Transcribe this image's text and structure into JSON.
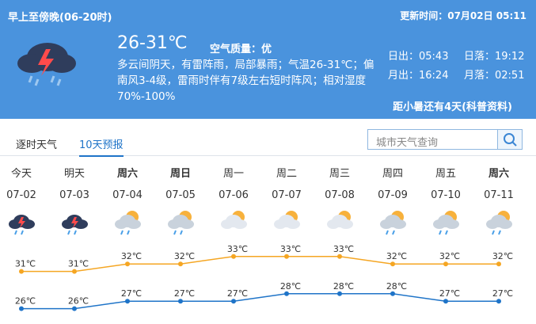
{
  "header": {
    "title": "早上至傍晚(06-20时)",
    "update": "更新时间：07月02日 05:11",
    "temperature": "26-31℃",
    "air_quality": "空气质量：优",
    "description": "多云间阴天，有雷阵雨，局部暴雨；气温26-31℃；偏南风3-4级，雷雨时伴有7级左右短时阵风；相对湿度70%-100%",
    "sunrise": "日出：05:43",
    "sunset": "日落：19:12",
    "moonrise": "月出：16:24",
    "moonset": "月落：02:51",
    "solar_term": "距小暑还有4天(科普资料)"
  },
  "tabs": [
    "逐时天气",
    "10天预报"
  ],
  "active_tab": 1,
  "search_placeholder": "城市天气查询",
  "forecast": {
    "days": [
      {
        "name": "今天",
        "date": "07-02",
        "bold": false,
        "icon": "thunderstorm"
      },
      {
        "name": "明天",
        "date": "07-03",
        "bold": false,
        "icon": "thunderstorm"
      },
      {
        "name": "周六",
        "date": "07-04",
        "bold": true,
        "icon": "cloudy-rain"
      },
      {
        "name": "周日",
        "date": "07-05",
        "bold": true,
        "icon": "cloudy-rain"
      },
      {
        "name": "周一",
        "date": "07-06",
        "bold": false,
        "icon": "partly-cloudy"
      },
      {
        "name": "周二",
        "date": "07-07",
        "bold": false,
        "icon": "partly-cloudy"
      },
      {
        "name": "周三",
        "date": "07-08",
        "bold": false,
        "icon": "partly-cloudy"
      },
      {
        "name": "周四",
        "date": "07-09",
        "bold": false,
        "icon": "cloudy-rain"
      },
      {
        "name": "周五",
        "date": "07-10",
        "bold": false,
        "icon": "cloudy-rain"
      },
      {
        "name": "周六",
        "date": "07-11",
        "bold": true,
        "icon": "cloudy-rain"
      }
    ],
    "highs": {
      "color": "#f5a623",
      "values": [
        31,
        31,
        32,
        32,
        33,
        33,
        33,
        32,
        32,
        32
      ],
      "value_labels": [
        "31℃",
        "31℃",
        "32℃",
        "32℃",
        "33℃",
        "33℃",
        "33℃",
        "32℃",
        "32℃",
        "32℃"
      ]
    },
    "lows": {
      "color": "#1f74c8",
      "values": [
        26,
        26,
        27,
        27,
        27,
        28,
        28,
        28,
        27,
        27
      ],
      "value_labels": [
        "26℃",
        "26℃",
        "27℃",
        "27℃",
        "27℃",
        "28℃",
        "28℃",
        "28℃",
        "27℃",
        "27℃"
      ]
    }
  }
}
